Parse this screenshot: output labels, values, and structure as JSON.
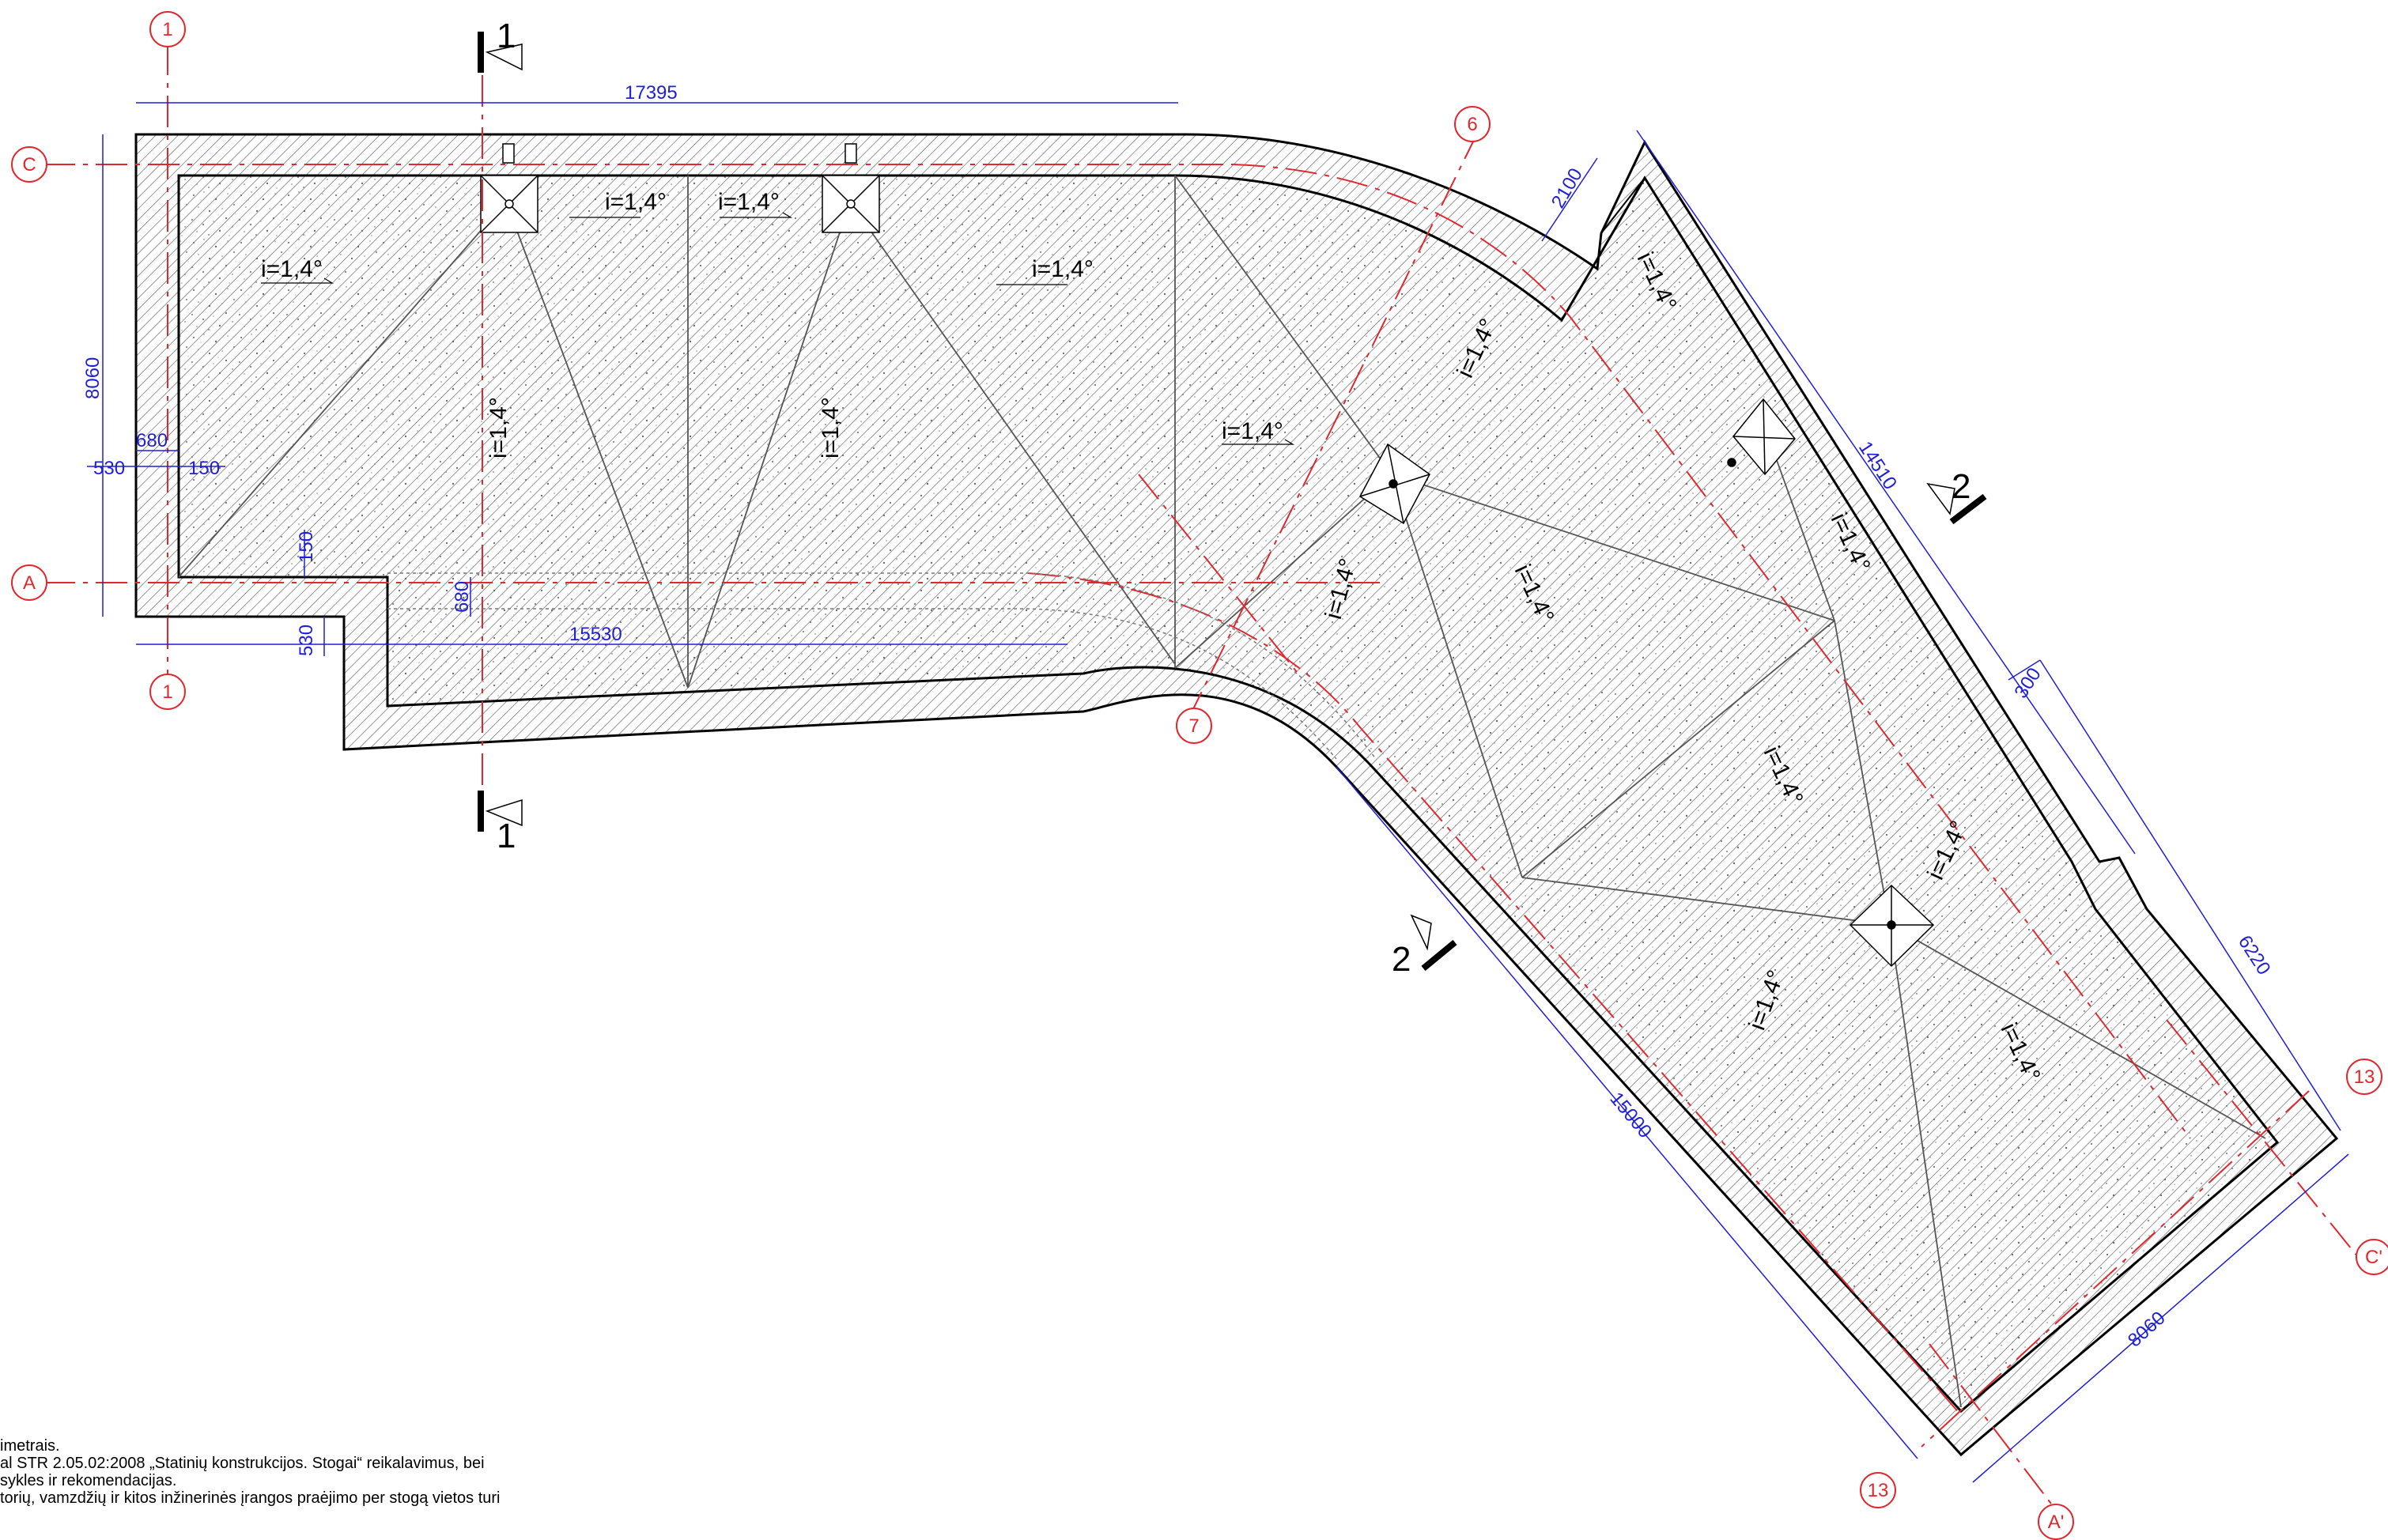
{
  "dimensions": {
    "top_length": "17395",
    "bottom_length": "15530",
    "left_height": "8060",
    "offset_680_left": "680",
    "offset_530_left": "530",
    "offset_150_left": "150",
    "offset_150_vert": "150",
    "offset_530_vert": "530",
    "offset_680_vert": "680",
    "wing_top_offset": "2100",
    "wing_outer_length": "14510",
    "wing_step": "300",
    "wing_right_length": "6220",
    "wing_inner_length": "15000",
    "wing_end_width": "8060"
  },
  "axes": {
    "axis_1_top": "1",
    "axis_1_bottom": "1",
    "axis_C": "C",
    "axis_A": "A",
    "axis_6": "6",
    "axis_7": "7",
    "axis_13_right": "13",
    "axis_13_bottom": "13",
    "axis_C_prime": "C'",
    "axis_A_prime": "A'"
  },
  "sections": {
    "cut_1_top": "1",
    "cut_1_bottom": "1",
    "cut_2_right": "2",
    "cut_2_left": "2"
  },
  "slope_label": "i=1,4°",
  "notes": [
    "imetrais.",
    "al STR 2.05.02:2008 „Statinių konstrukcijos. Stogai“ reikalavimus, bei",
    "sykles ir rekomendacijas.",
    "torių, vamzdžių ir kitos inžinerinės įrangos praėjimo per stogą vietos turi"
  ],
  "colors": {
    "dimension": "#1f1fd6",
    "axis": "#e0282e",
    "outline": "#000000",
    "speckle": "#8a8a8a"
  }
}
